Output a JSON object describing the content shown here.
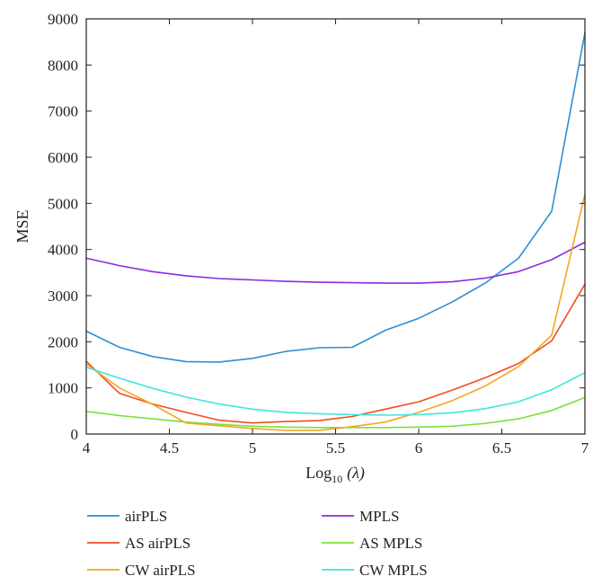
{
  "chart_data": {
    "type": "line",
    "xlabel": "Log",
    "xlabel_sub": "10",
    "xlabel_suffix": "(λ)",
    "ylabel": "MSE",
    "xlim": [
      4,
      7
    ],
    "ylim": [
      0,
      9000
    ],
    "xticks": [
      4,
      4.5,
      5,
      5.5,
      6,
      6.5,
      7
    ],
    "xtick_labels": [
      "4",
      "4.5",
      "5",
      "5.5",
      "6",
      "6.5",
      "7"
    ],
    "yticks": [
      0,
      1000,
      2000,
      3000,
      4000,
      5000,
      6000,
      7000,
      8000,
      9000
    ],
    "ytick_labels": [
      "0",
      "1000",
      "2000",
      "3000",
      "4000",
      "5000",
      "6000",
      "7000",
      "8000",
      "9000"
    ],
    "grid": false,
    "legend_position": "bottom",
    "x": [
      4.0,
      4.2,
      4.4,
      4.6,
      4.8,
      5.0,
      5.2,
      5.4,
      5.6,
      5.8,
      6.0,
      6.2,
      6.4,
      6.6,
      6.8,
      7.0
    ],
    "series": [
      {
        "name": "airPLS",
        "color": "#2b8fd6",
        "values": [
          2230,
          1880,
          1680,
          1570,
          1560,
          1640,
          1790,
          1870,
          1880,
          2250,
          2510,
          2860,
          3270,
          3810,
          4830,
          8700
        ]
      },
      {
        "name": "MPLS",
        "color": "#8a2be2",
        "values": [
          3810,
          3650,
          3520,
          3430,
          3370,
          3340,
          3310,
          3290,
          3280,
          3270,
          3270,
          3300,
          3380,
          3520,
          3780,
          4160
        ]
      },
      {
        "name": "AS airPLS",
        "color": "#f04e23",
        "values": [
          1580,
          880,
          650,
          470,
          300,
          240,
          270,
          290,
          380,
          540,
          700,
          950,
          1220,
          1530,
          2020,
          3250
        ]
      },
      {
        "name": "AS MPLS",
        "color": "#7be03a",
        "values": [
          490,
          400,
          330,
          260,
          210,
          170,
          150,
          140,
          140,
          140,
          150,
          170,
          230,
          330,
          510,
          790
        ]
      },
      {
        "name": "CW airPLS",
        "color": "#f5a623",
        "values": [
          1520,
          1000,
          640,
          240,
          180,
          120,
          80,
          80,
          160,
          260,
          470,
          720,
          1040,
          1460,
          2140,
          5200
        ]
      },
      {
        "name": "CW MPLS",
        "color": "#3ee6dc",
        "values": [
          1450,
          1210,
          990,
          800,
          650,
          540,
          470,
          440,
          420,
          410,
          420,
          460,
          550,
          700,
          960,
          1330
        ]
      }
    ]
  }
}
